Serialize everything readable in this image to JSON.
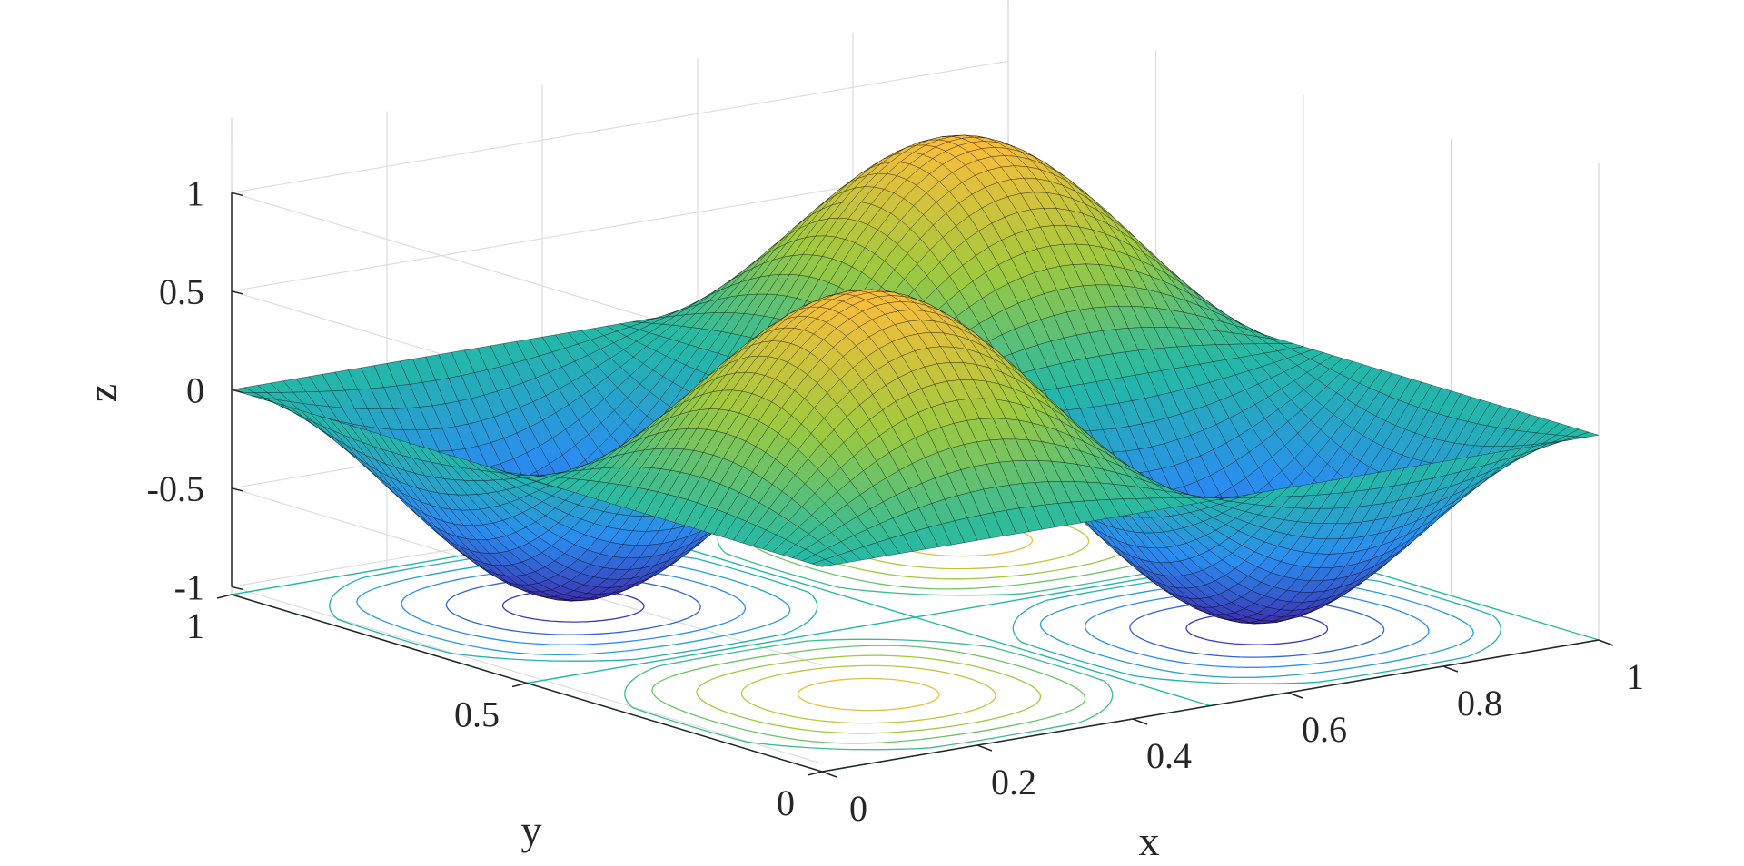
{
  "chart_data": {
    "type": "surface",
    "surface_function": "z = sin(2*pi*x) * sin(2*pi*y)",
    "projection": "3d-view",
    "contours_on_floor": true,
    "colormap": "parula",
    "xlabel": "x",
    "ylabel": "y",
    "zlabel": "z",
    "xlim": [
      0,
      1
    ],
    "ylim": [
      0,
      1
    ],
    "zlim": [
      -1,
      1
    ],
    "x_ticks": [
      "0",
      "0.2",
      "0.4",
      "0.6",
      "0.8",
      "1"
    ],
    "y_ticks": [
      "0",
      "0.5",
      "1"
    ],
    "z_ticks": [
      "-1",
      "-0.5",
      "0",
      "0.5",
      "1"
    ],
    "contour_levels": [
      -0.9,
      -0.7,
      -0.5,
      -0.3,
      -0.1,
      0.1,
      0.3,
      0.5,
      0.7,
      0.9
    ],
    "grid": true,
    "colors": {
      "low": "#3e26a8",
      "mid_low": "#2a8df0",
      "mid": "#23b9a6",
      "mid_high": "#9fc93e",
      "high": "#f9bd3b",
      "mesh": "#000000",
      "grid": "#dcdcdc",
      "axis": "#262626"
    }
  }
}
